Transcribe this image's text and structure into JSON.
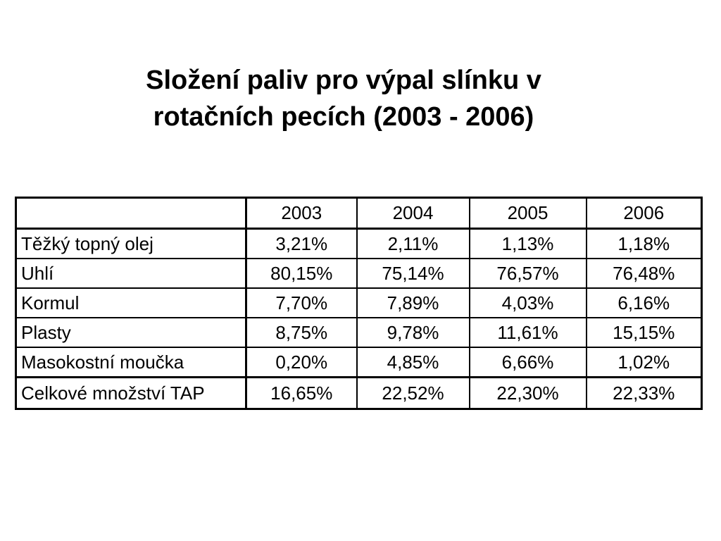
{
  "title": {
    "line1": "Složení paliv pro výpal slínku v",
    "line2": "rotačních pecích (2003 - 2006)"
  },
  "table": {
    "columns": [
      "",
      "2003",
      "2004",
      "2005",
      "2006"
    ],
    "rows": [
      {
        "label": "Těžký topný olej",
        "values": [
          "3,21%",
          "2,11%",
          "1,13%",
          "1,18%"
        ]
      },
      {
        "label": "Uhlí",
        "values": [
          "80,15%",
          "75,14%",
          "76,57%",
          "76,48%"
        ]
      },
      {
        "label": "Kormul",
        "values": [
          "7,70%",
          "7,89%",
          "4,03%",
          "6,16%"
        ]
      },
      {
        "label": "Plasty",
        "values": [
          "8,75%",
          "9,78%",
          "11,61%",
          "15,15%"
        ]
      },
      {
        "label": "Masokostní moučka",
        "values": [
          "0,20%",
          "4,85%",
          "6,66%",
          "1,02%"
        ]
      },
      {
        "label": "Celkové množství TAP",
        "values": [
          "16,65%",
          "22,52%",
          "22,30%",
          "22,33%"
        ]
      }
    ]
  }
}
